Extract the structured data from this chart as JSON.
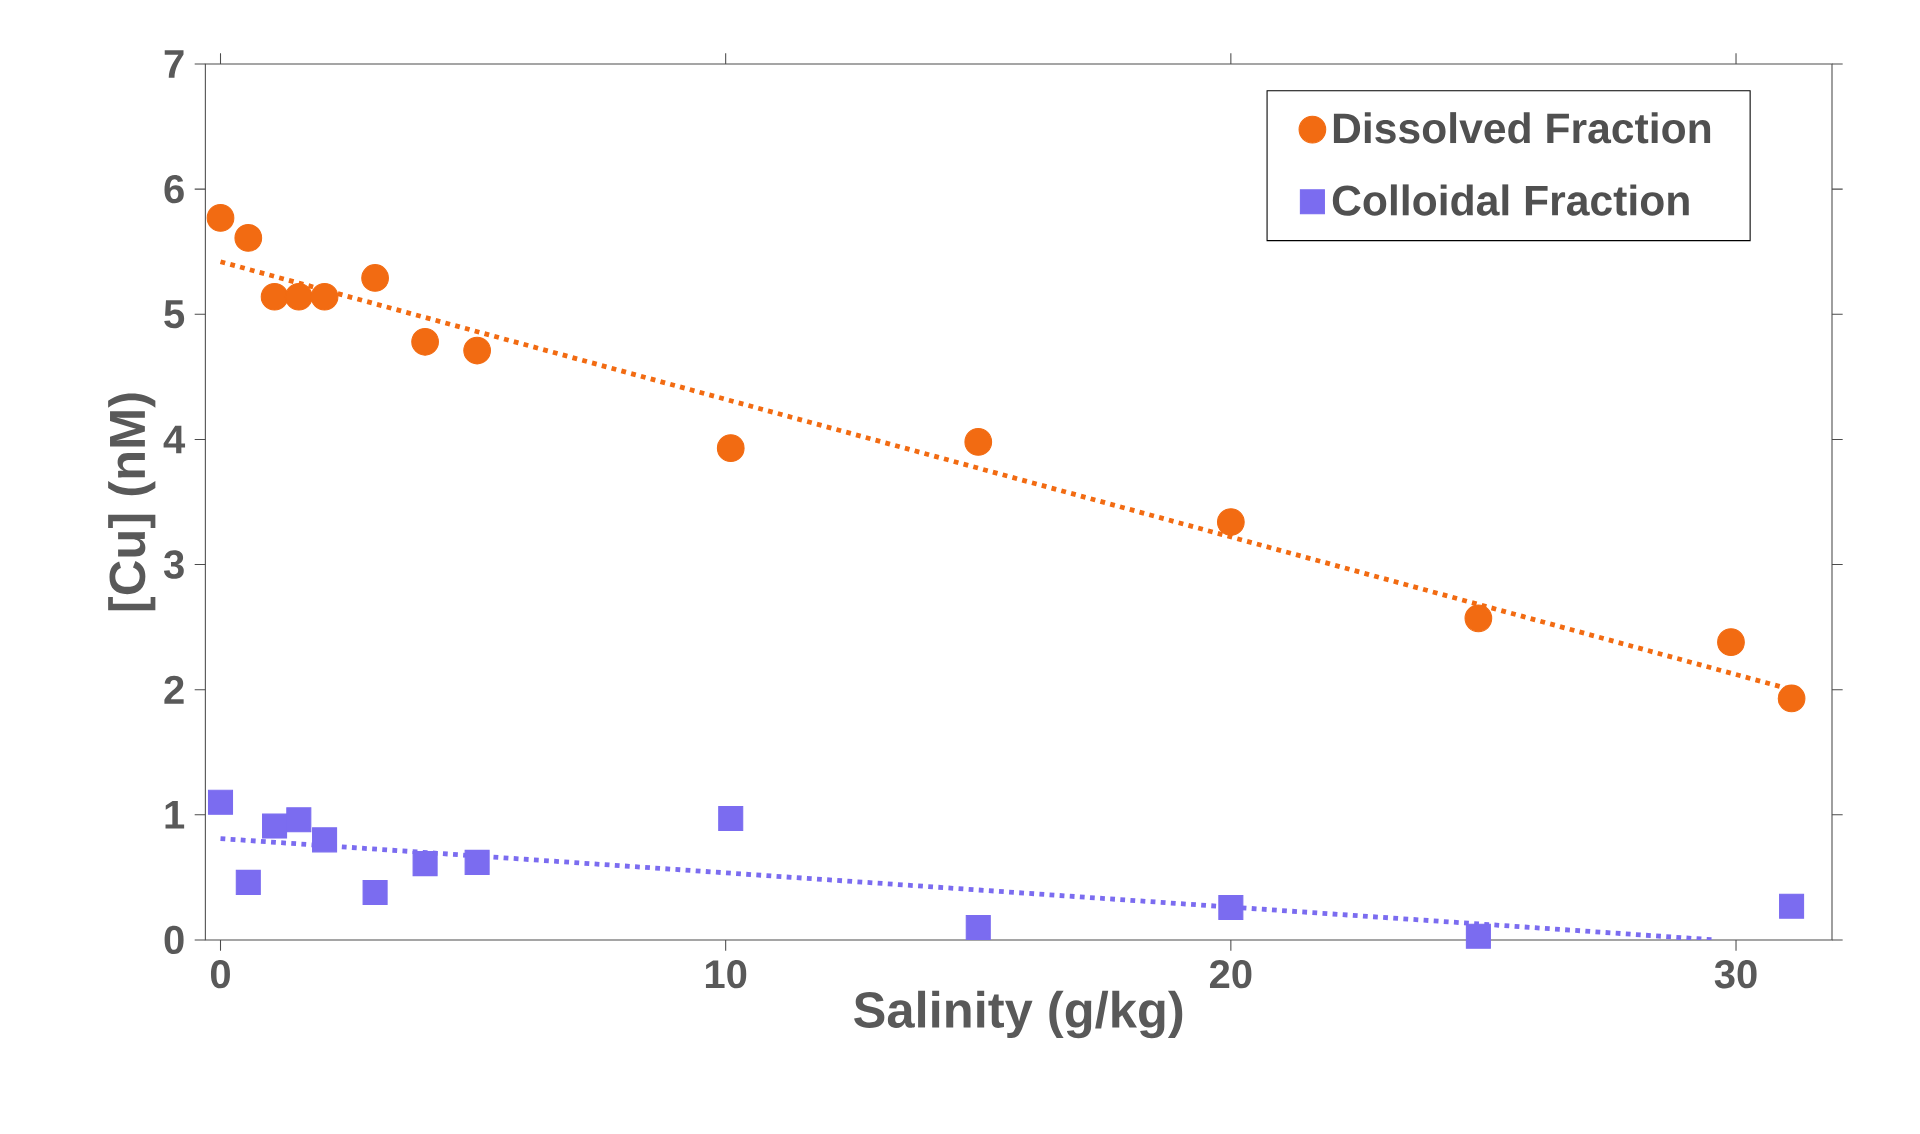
{
  "chart_data": {
    "type": "scatter",
    "xlabel": "Salinity (g/kg)",
    "ylabel": "[Cu] (nM)",
    "xlim": [
      -0.3,
      31.9
    ],
    "ylim": [
      0,
      7
    ],
    "xticks": [
      0,
      10,
      20,
      30
    ],
    "yticks": [
      0,
      1,
      2,
      3,
      4,
      5,
      6,
      7
    ],
    "legend": "top right",
    "grid": false,
    "series": [
      {
        "name": "Dissolved Fraction",
        "color": "#f26b12",
        "marker": "circle",
        "x": [
          0,
          0.55,
          1.07,
          1.55,
          2.06,
          3.06,
          4.05,
          5.08,
          10.1,
          15.0,
          20.0,
          24.9,
          29.9,
          31.1
        ],
        "values": [
          5.77,
          5.61,
          5.14,
          5.14,
          5.14,
          5.29,
          4.78,
          4.71,
          3.93,
          3.98,
          3.34,
          2.57,
          2.38,
          1.93
        ]
      },
      {
        "name": "Colloidal Fraction",
        "color": "#7b6cf0",
        "marker": "square",
        "x": [
          0,
          0.55,
          1.07,
          1.55,
          2.06,
          3.06,
          4.05,
          5.08,
          10.1,
          15.0,
          20.0,
          24.9,
          31.1
        ],
        "values": [
          1.1,
          0.46,
          0.91,
          0.96,
          0.8,
          0.38,
          0.61,
          0.62,
          0.97,
          0.1,
          0.26,
          0.03,
          0.27
        ]
      },
      {
        "type": "line",
        "color": "#f26b12",
        "line_style": "dotted",
        "marker": "none",
        "x": [
          0,
          31.1
        ],
        "values": [
          5.42,
          2.0
        ]
      },
      {
        "type": "line",
        "color": "#7b6cf0",
        "line_style": "dotted",
        "marker": "none",
        "x": [
          0,
          29.6
        ],
        "values": [
          0.81,
          0
        ]
      }
    ]
  }
}
